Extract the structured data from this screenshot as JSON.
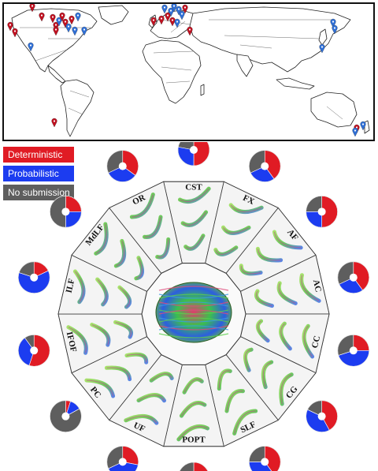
{
  "colors": {
    "deterministic": "#e01b24",
    "probabilistic": "#1c3cf0",
    "no_submission": "#5e5e5e",
    "map_marker_red": "#c01020",
    "map_marker_blue": "#2f6fd6"
  },
  "legend": [
    {
      "label": "Deterministic",
      "color": "#e01b24"
    },
    {
      "label": "Probabilistic",
      "color": "#1c3cf0"
    },
    {
      "label": "No submission",
      "color": "#5e5e5e"
    }
  ],
  "center_image": "brain-tractography",
  "tracts": [
    {
      "label": "CST",
      "fractions": [
        0.5,
        0.28,
        0.22
      ]
    },
    {
      "label": "FX",
      "fractions": [
        0.4,
        0.28,
        0.32
      ]
    },
    {
      "label": "AF",
      "fractions": [
        0.5,
        0.25,
        0.25
      ]
    },
    {
      "label": "AC",
      "fractions": [
        0.4,
        0.28,
        0.32
      ]
    },
    {
      "label": "CC",
      "fractions": [
        0.25,
        0.45,
        0.3
      ]
    },
    {
      "label": "CG",
      "fractions": [
        0.42,
        0.4,
        0.18
      ]
    },
    {
      "label": "SLF",
      "fractions": [
        0.4,
        0.35,
        0.25
      ]
    },
    {
      "label": "POPT",
      "fractions": [
        0.28,
        0.22,
        0.5
      ]
    },
    {
      "label": "UF",
      "fractions": [
        0.28,
        0.4,
        0.32
      ]
    },
    {
      "label": "PC",
      "fractions": [
        0.05,
        0.12,
        0.83
      ]
    },
    {
      "label": "IFOF",
      "fractions": [
        0.55,
        0.35,
        0.1
      ]
    },
    {
      "label": "ILF",
      "fractions": [
        0.18,
        0.62,
        0.2
      ]
    },
    {
      "label": "MdLF",
      "fractions": [
        0.25,
        0.25,
        0.5
      ]
    },
    {
      "label": "OR",
      "fractions": [
        0.35,
        0.33,
        0.32
      ]
    }
  ]
}
